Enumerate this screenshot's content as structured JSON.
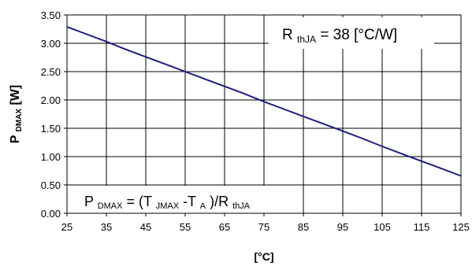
{
  "chart_data": {
    "type": "line",
    "title": "",
    "xlabel": "[°C]",
    "ylabel": {
      "main": "P",
      "sub": "DMAX",
      "unit": " [W]"
    },
    "xlim": [
      25,
      125
    ],
    "ylim": [
      0,
      3.5
    ],
    "x_ticks": [
      "25",
      "35",
      "45",
      "55",
      "65",
      "75",
      "85",
      "95",
      "105",
      "115",
      "125"
    ],
    "y_ticks": [
      "0.00",
      "0.50",
      "1.00",
      "1.50",
      "2.00",
      "2.50",
      "3.00",
      "3.50"
    ],
    "grid": true,
    "series": [
      {
        "color": "#1c1c80",
        "x": [
          25,
          30,
          35,
          40,
          45,
          50,
          55,
          60,
          65,
          70,
          75,
          80,
          85,
          90,
          95,
          100,
          105,
          110,
          115,
          120,
          125
        ],
        "y": [
          3.29,
          3.16,
          3.03,
          2.89,
          2.76,
          2.63,
          2.5,
          2.37,
          2.24,
          2.11,
          1.97,
          1.84,
          1.71,
          1.58,
          1.45,
          1.32,
          1.18,
          1.05,
          0.92,
          0.79,
          0.66
        ]
      }
    ],
    "annotations": {
      "rth": {
        "main": "R",
        "sub": "thJA",
        "rest": " = 38 [°C/W]"
      },
      "formula": {
        "p": "P",
        "p_sub": "DMAX",
        "eq": " = (T",
        "tj_sub": "JMAX",
        "dash": "-T",
        "ta_sub": "A",
        "div": ")/R",
        "r_sub": "thJA"
      }
    }
  }
}
